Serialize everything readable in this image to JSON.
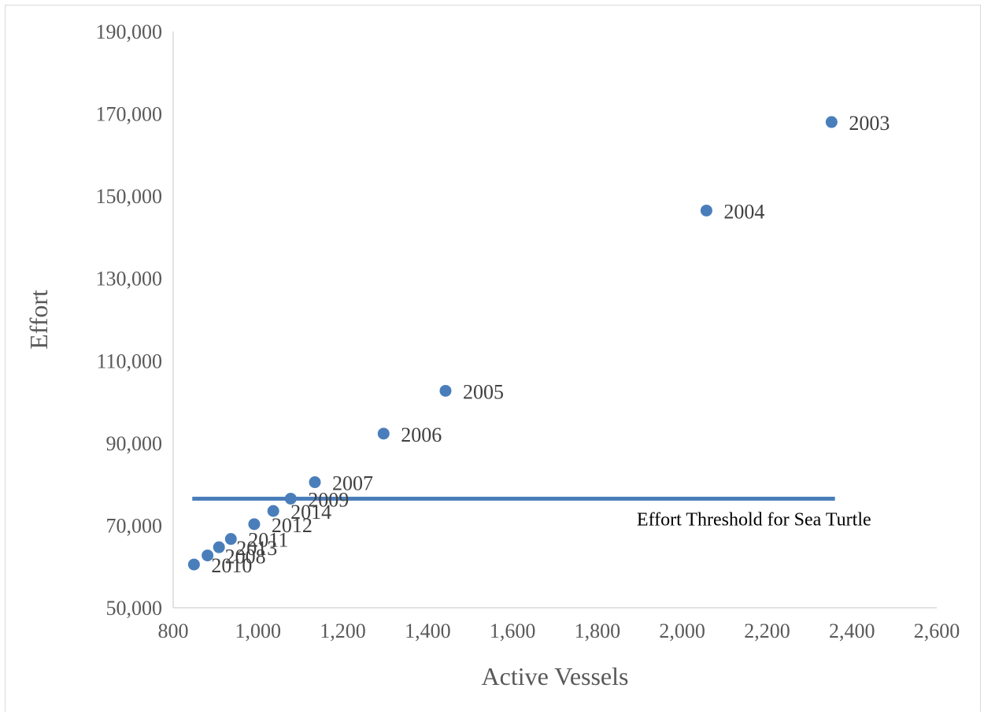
{
  "chart_data": {
    "type": "scatter",
    "title": "",
    "xlabel": "Active Vessels",
    "ylabel": "Effort",
    "xlim": [
      800,
      2600
    ],
    "ylim": [
      50000,
      190000
    ],
    "x_ticks": [
      800,
      1000,
      1200,
      1400,
      1600,
      1800,
      2000,
      2200,
      2400,
      2600
    ],
    "x_tick_labels": [
      "800",
      "1,000",
      "1,200",
      "1,400",
      "1,600",
      "1,800",
      "2,000",
      "2,200",
      "2,400",
      "2,600"
    ],
    "y_ticks": [
      50000,
      70000,
      90000,
      110000,
      130000,
      150000,
      170000,
      190000
    ],
    "y_tick_labels": [
      "50,000",
      "70,000",
      "90,000",
      "110,000",
      "130,000",
      "150,000",
      "170,000",
      "190,000"
    ],
    "grid": false,
    "legend": "none",
    "marker_color": "#4a7ebb",
    "points": [
      {
        "label": "2003",
        "x": 2352,
        "y": 168000
      },
      {
        "label": "2004",
        "x": 2057,
        "y": 146500
      },
      {
        "label": "2005",
        "x": 1442,
        "y": 102700
      },
      {
        "label": "2006",
        "x": 1296,
        "y": 92300
      },
      {
        "label": "2007",
        "x": 1134,
        "y": 80500
      },
      {
        "label": "2009",
        "x": 1077,
        "y": 76500
      },
      {
        "label": "2014",
        "x": 1036,
        "y": 73500
      },
      {
        "label": "2012",
        "x": 991,
        "y": 70300
      },
      {
        "label": "2011",
        "x": 936,
        "y": 66700
      },
      {
        "label": "2013",
        "x": 908,
        "y": 64700
      },
      {
        "label": "2008",
        "x": 881,
        "y": 62700
      },
      {
        "label": "2010",
        "x": 849,
        "y": 60500
      }
    ],
    "threshold": {
      "label": "Effort Threshold for Sea Turtle",
      "y": 76500,
      "x_start": 845,
      "x_end": 2360,
      "color": "#4a7ebb"
    }
  }
}
